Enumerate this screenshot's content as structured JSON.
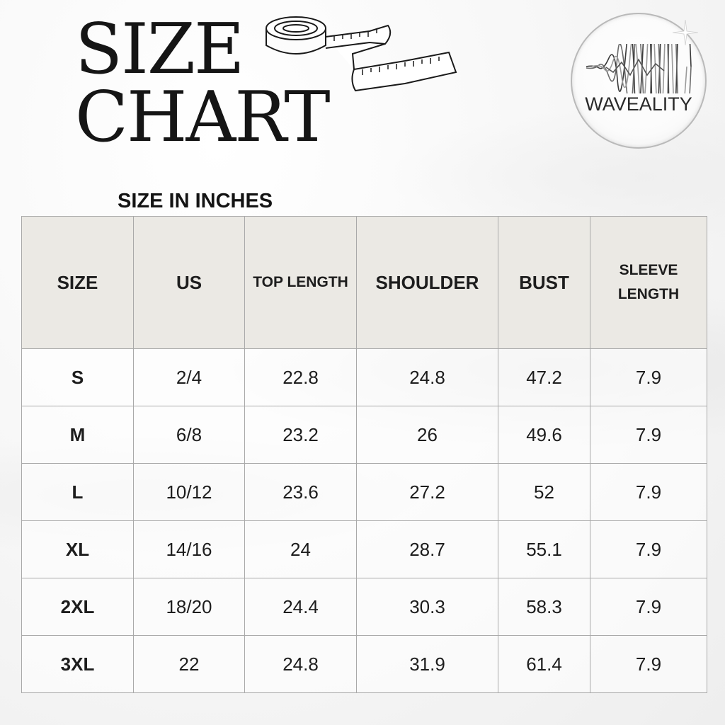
{
  "title": {
    "line1": "SIZE",
    "line2": "CHART"
  },
  "logo": {
    "text": "WAVEALITY"
  },
  "subtitle": "SIZE IN INCHES",
  "table": {
    "headers": {
      "size": "SIZE",
      "us": "US",
      "top_length": "TOP LENGTH",
      "shoulder": "SHOULDER",
      "bust": "BUST",
      "sleeve_line1": "SLEEVE",
      "sleeve_line2": "LENGTH"
    },
    "rows": [
      {
        "size": "S",
        "us": "2/4",
        "top_length": "22.8",
        "shoulder": "24.8",
        "bust": "47.2",
        "sleeve": "7.9"
      },
      {
        "size": "M",
        "us": "6/8",
        "top_length": "23.2",
        "shoulder": "26",
        "bust": "49.6",
        "sleeve": "7.9"
      },
      {
        "size": "L",
        "us": "10/12",
        "top_length": "23.6",
        "shoulder": "27.2",
        "bust": "52",
        "sleeve": "7.9"
      },
      {
        "size": "XL",
        "us": "14/16",
        "top_length": "24",
        "shoulder": "28.7",
        "bust": "55.1",
        "sleeve": "7.9"
      },
      {
        "size": "2XL",
        "us": "18/20",
        "top_length": "24.4",
        "shoulder": "30.3",
        "bust": "58.3",
        "sleeve": "7.9"
      },
      {
        "size": "3XL",
        "us": "22",
        "top_length": "24.8",
        "shoulder": "31.9",
        "bust": "61.4",
        "sleeve": "7.9"
      }
    ]
  }
}
